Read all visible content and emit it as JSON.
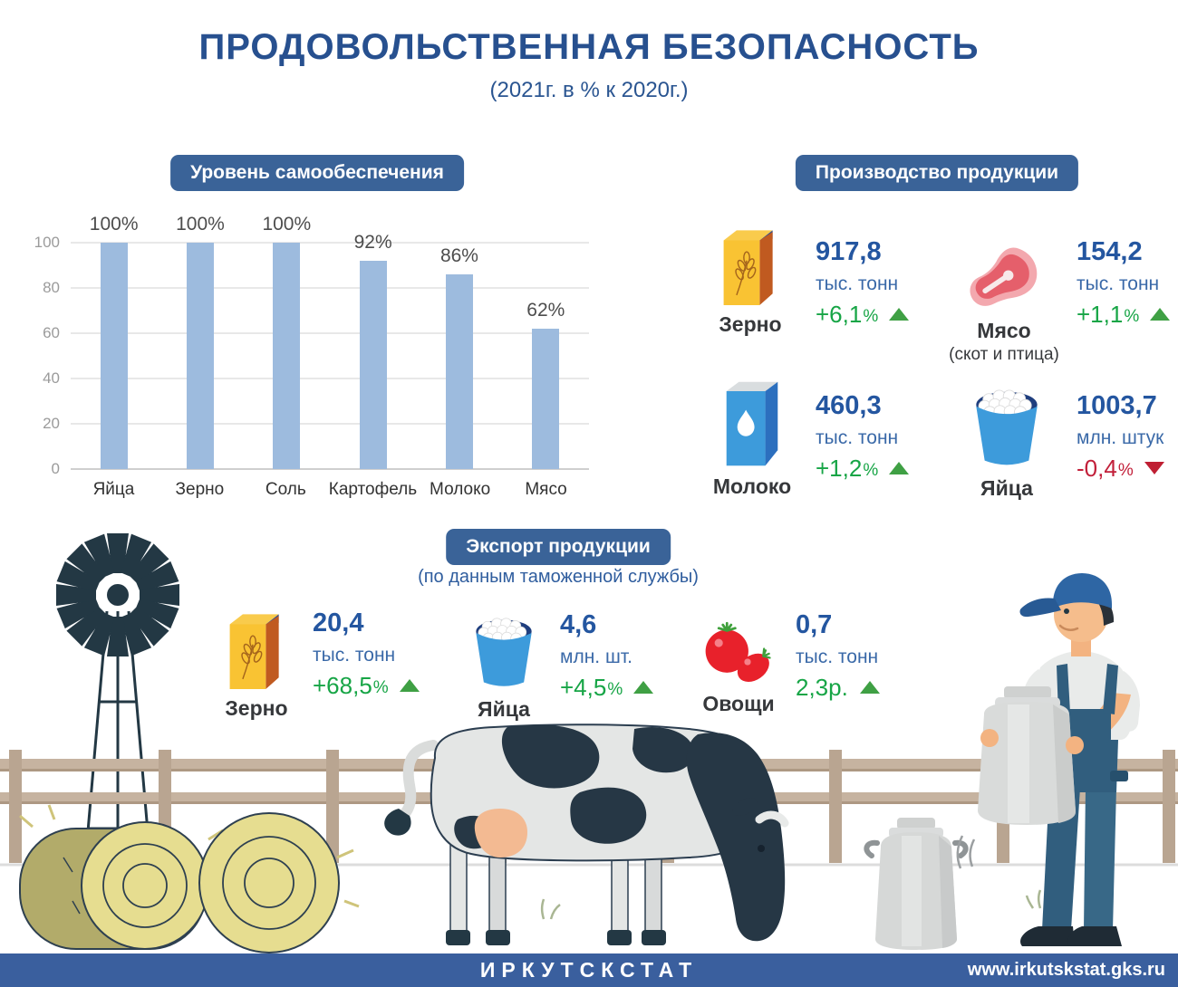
{
  "page": {
    "title": "ПРОДОВОЛЬСТВЕННАЯ БЕЗОПАСНОСТЬ",
    "subtitle": "(2021г. в % к  2020г.)"
  },
  "colors": {
    "accent_blue": "#27508F",
    "badge_blue": "#3A6398",
    "bar_blue": "#9DBBDE",
    "value_blue": "#2456A0",
    "green": "#17A546",
    "red": "#C2203A",
    "footer_blue": "#3A5F9E"
  },
  "chart_data": {
    "type": "bar",
    "title": "Уровень самообеспечения",
    "categories": [
      "Яйца",
      "Зерно",
      "Соль",
      "Картофель",
      "Молоко",
      "Мясо"
    ],
    "values": [
      100,
      100,
      100,
      92,
      86,
      62
    ],
    "labels": [
      "100%",
      "100%",
      "100%",
      "92%",
      "86%",
      "62%"
    ],
    "unit": "%",
    "ylim": [
      0,
      100
    ],
    "yticks": [
      0,
      20,
      40,
      60,
      80,
      100
    ],
    "grid": true,
    "legend": "none"
  },
  "production": {
    "header": "Производство продукции",
    "items": [
      {
        "label": "Зерно",
        "icon": "grain-box-icon",
        "value": "917,8",
        "unit": "тыс. тонн",
        "change": "+6,1",
        "change_suffix": "%",
        "direction": "up"
      },
      {
        "label": "Мясо",
        "sublabel": "(скот и птица)",
        "icon": "meat-icon",
        "value": "154,2",
        "unit": "тыс. тонн",
        "change": "+1,1",
        "change_suffix": "%",
        "direction": "up"
      },
      {
        "label": "Молоко",
        "icon": "milk-carton-icon",
        "value": "460,3",
        "unit": "тыс. тонн",
        "change": "+1,2",
        "change_suffix": "%",
        "direction": "up"
      },
      {
        "label": "Яйца",
        "icon": "egg-bucket-icon",
        "value": "1003,7",
        "unit": "млн. штук",
        "change": "-0,4",
        "change_suffix": "%",
        "direction": "down"
      }
    ]
  },
  "export": {
    "header": "Экспорт продукции",
    "subtitle": "(по данным таможенной службы)",
    "items": [
      {
        "label": "Зерно",
        "icon": "grain-box-icon",
        "value": "20,4",
        "unit": "тыс. тонн",
        "change": "+68,5",
        "change_suffix": "%",
        "direction": "up"
      },
      {
        "label": "Яйца",
        "icon": "egg-bucket-icon",
        "value": "4,6",
        "unit": "млн. шт.",
        "change": "+4,5",
        "change_suffix": "%",
        "direction": "up"
      },
      {
        "label": "Овощи",
        "icon": "tomatoes-icon",
        "value": "0,7",
        "unit": "тыс. тонн",
        "change": "2,3р.",
        "change_suffix": "",
        "direction": "up"
      }
    ]
  },
  "footer": {
    "org": "ИРКУТСКСТАТ",
    "url": "www.irkutskstat.gks.ru"
  },
  "illustration": {
    "elements": [
      "windmill",
      "fence",
      "hay-bales",
      "cow",
      "milk-cans",
      "farmer"
    ]
  }
}
